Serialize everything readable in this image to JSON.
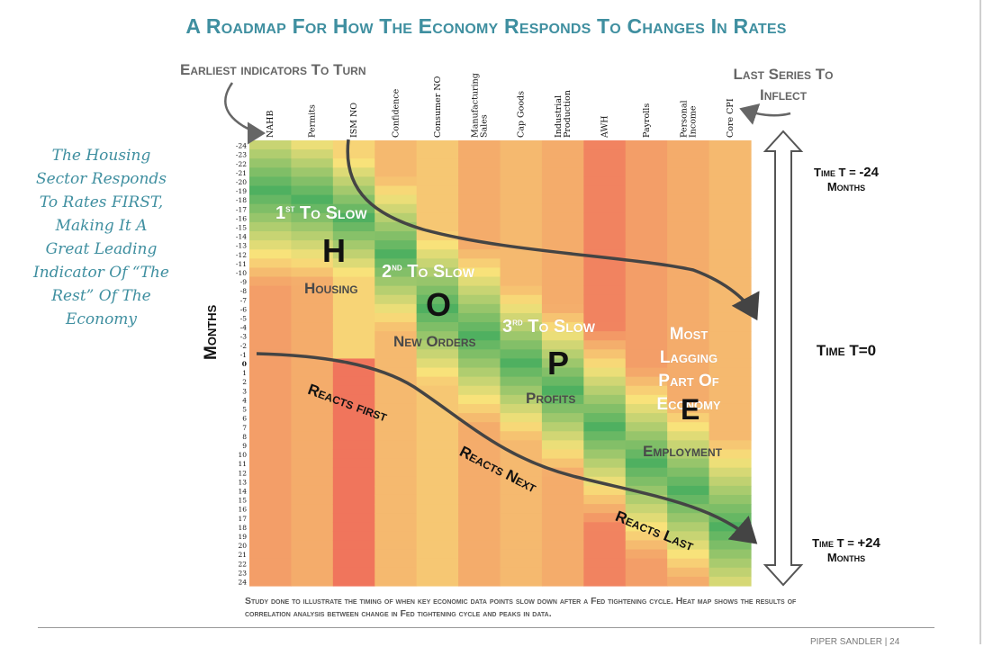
{
  "title": "A Roadmap For How The Economy Responds To Changes In Rates",
  "earliest_label": "Earliest indicators To Turn",
  "last_label_line1": "Last Series To",
  "last_label_line2": "Inflect",
  "side_note": [
    "The Housing",
    "Sector Responds",
    "To Rates FIRST,",
    "Making It A",
    "Great Leading",
    "Indicator Of “The",
    "Rest” Of The",
    "Economy"
  ],
  "y_axis_title": "Months",
  "time_labels": {
    "top_a": "Time T = ",
    "top_b": "-24",
    "top_c": "Months",
    "mid": "Time T=0",
    "bot_a": "Time T = ",
    "bot_b": "+24",
    "bot_c": "Months"
  },
  "overlay": {
    "slow1_a": "1",
    "slow1_sup": "st",
    "slow1_b": " To Slow",
    "slow2_a": "2",
    "slow2_sup": "nd",
    "slow2_b": " To Slow",
    "slow3_a": "3",
    "slow3_sup": "rd",
    "slow3_b": " To Slow",
    "h": "H",
    "o": "O",
    "p": "P",
    "e": "E",
    "housing": "Housing",
    "new_orders": "New Orders",
    "profits": "Profits",
    "employment": "Employment",
    "most_lagging": [
      "Most",
      "Lagging",
      "Part Of",
      "Economy"
    ],
    "reacts_first": "Reacts first",
    "reacts_next": "Reacts Next",
    "reacts_last": "Reacts Last"
  },
  "caption": "Study done to illustrate the timing of when key economic data points slow down after a Fed tightening cycle. Heat map shows the results of correlation analysis between change in Fed tightening cycle and peaks in data.",
  "footer": "PIPER SANDLER | 24",
  "chart_data": {
    "type": "heatmap",
    "title": "A Roadmap For How The Economy Responds To Changes In Rates",
    "ylabel": "Months",
    "columns": [
      [
        "NAHB"
      ],
      [
        "Permits"
      ],
      [
        "ISM NO"
      ],
      [
        "Confidence"
      ],
      [
        "Consumer NO"
      ],
      [
        "Manufacturing",
        "Sales"
      ],
      [
        "Cap Goods"
      ],
      [
        "Industrial",
        "Production"
      ],
      [
        "AWH"
      ],
      [
        "Payrolls"
      ],
      [
        "Personal",
        "Income"
      ],
      [
        "Core CPI"
      ]
    ],
    "rows": [
      -24,
      -23,
      -22,
      -21,
      -20,
      -19,
      -18,
      -17,
      -16,
      -15,
      -14,
      -13,
      -12,
      -11,
      -10,
      -9,
      -8,
      -7,
      -6,
      -5,
      -4,
      -3,
      -2,
      -1,
      0,
      1,
      2,
      3,
      4,
      5,
      6,
      7,
      8,
      9,
      10,
      11,
      12,
      13,
      14,
      15,
      16,
      17,
      18,
      19,
      20,
      21,
      22,
      23,
      24
    ],
    "scale": "green = strong, red = weak",
    "colors": {
      "high": "#4fb060",
      "mid": "#f8e27a",
      "low": "#ee5a55"
    }
  }
}
